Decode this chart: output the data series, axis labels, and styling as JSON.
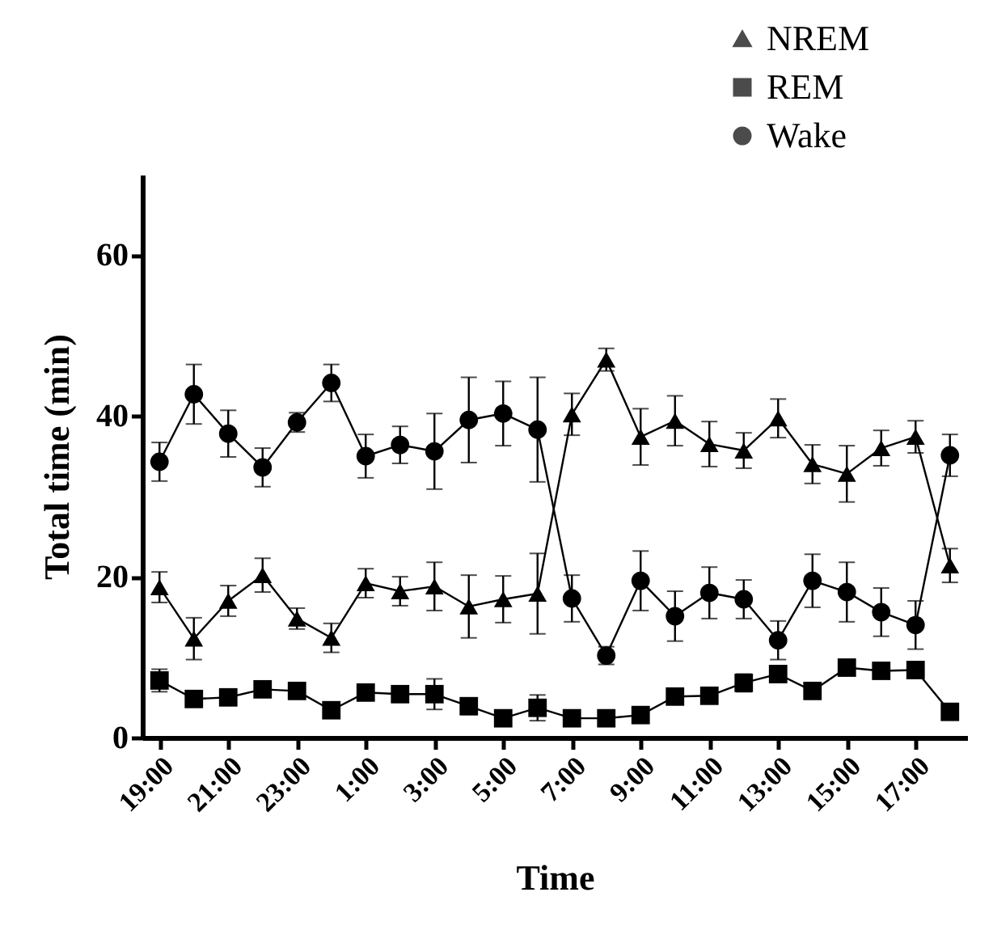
{
  "chart_data": {
    "type": "line",
    "xlabel": "Time",
    "ylabel": "Total time (min)",
    "categories": [
      "19:00",
      null,
      "21:00",
      null,
      "23:00",
      null,
      "1:00",
      null,
      "3:00",
      null,
      "5:00",
      null,
      "7:00",
      null,
      "9:00",
      null,
      "11:00",
      null,
      "13:00",
      null,
      "15:00",
      null,
      "17:00",
      null
    ],
    "ylim": [
      0,
      70
    ],
    "yticks": [
      0,
      20,
      40,
      60
    ],
    "grid": false,
    "legend": "top right",
    "series": [
      {
        "name": "NREM",
        "color": "#000000",
        "marker": "triangle",
        "values": [
          18.7,
          12.3,
          17.0,
          20.2,
          14.8,
          12.4,
          19.2,
          18.2,
          18.8,
          16.3,
          17.2,
          17.9,
          40.2,
          47.0,
          37.4,
          39.4,
          36.5,
          35.7,
          39.7,
          34.0,
          32.8,
          36.0,
          37.4,
          21.4
        ],
        "errors": [
          1.9,
          2.6,
          1.9,
          2.1,
          1.3,
          1.8,
          1.8,
          1.8,
          3.0,
          3.9,
          2.9,
          5.0,
          2.6,
          1.4,
          3.5,
          3.1,
          2.8,
          2.2,
          2.4,
          2.4,
          3.5,
          2.2,
          2.0,
          2.1
        ]
      },
      {
        "name": "REM",
        "color": "#000000",
        "marker": "square",
        "values": [
          7.1,
          4.8,
          5.0,
          6.0,
          5.8,
          3.4,
          5.6,
          5.4,
          5.4,
          3.9,
          2.4,
          3.7,
          2.4,
          2.4,
          2.8,
          5.1,
          5.2,
          6.8,
          7.9,
          5.8,
          8.7,
          8.3,
          8.4,
          3.2
        ],
        "errors": [
          1.4,
          null,
          null,
          null,
          null,
          null,
          null,
          null,
          1.9,
          1.0,
          null,
          1.6,
          null,
          null,
          null,
          null,
          null,
          1.1,
          1.0,
          null,
          null,
          null,
          null,
          null
        ]
      },
      {
        "name": "Wake",
        "color": "#000000",
        "marker": "circle",
        "values": [
          34.3,
          42.7,
          37.8,
          33.6,
          39.2,
          44.1,
          35.0,
          36.4,
          35.6,
          39.5,
          40.3,
          38.3,
          17.3,
          10.2,
          19.5,
          15.1,
          18.0,
          17.2,
          12.1,
          19.5,
          18.1,
          15.6,
          14.0,
          35.1
        ],
        "errors": [
          2.4,
          3.7,
          2.9,
          2.4,
          1.2,
          2.3,
          2.7,
          2.3,
          4.7,
          5.3,
          4.0,
          6.5,
          2.9,
          1.1,
          3.7,
          3.1,
          3.2,
          2.4,
          2.4,
          3.3,
          3.7,
          3.0,
          3.0,
          2.6
        ]
      }
    ]
  }
}
